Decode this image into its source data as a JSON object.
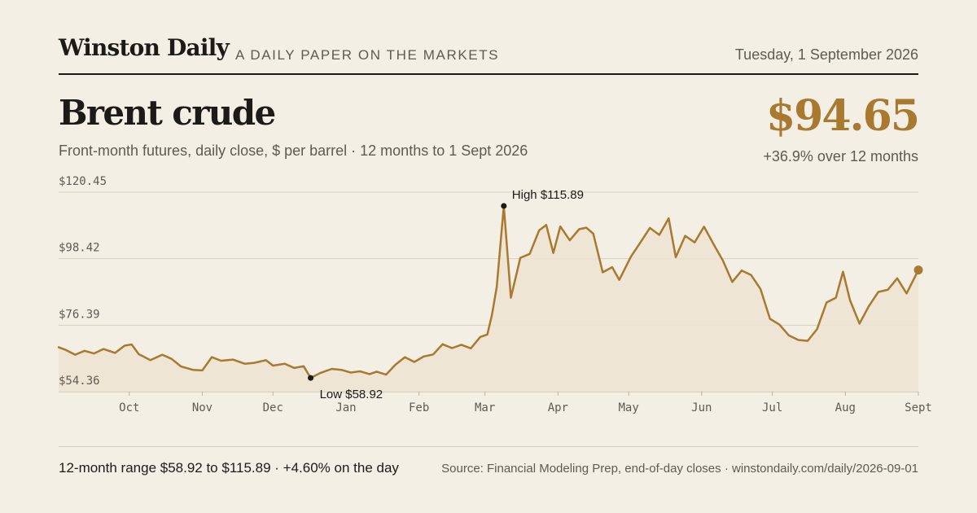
{
  "masthead": {
    "brand": "Winston Daily",
    "tagline": "A DAILY PAPER ON THE MARKETS",
    "date": "Tuesday, 1 September 2026"
  },
  "headline": {
    "title": "Brent crude",
    "subtitle": "Front-month futures, daily close, $ per barrel · 12 months to 1 Sept 2026",
    "price": "$94.65",
    "change": "+36.9% over 12 months"
  },
  "footer": {
    "summary": "12-month range $58.92 to $115.89 · +4.60% on the day",
    "source": "Source: Financial Modeling Prep, end-of-day closes · winstondaily.com/daily/2026-09-01"
  },
  "colors": {
    "line": "#a8792f",
    "area": "#ede3d2",
    "grid": "#d8cfbf",
    "text": "#1d1b18",
    "muted": "#5f5a52",
    "background": "#f4efe5"
  },
  "chart_data": {
    "type": "line",
    "series_name": "Brent crude front-month close",
    "ylim": [
      54.36,
      120.45
    ],
    "yticks": [
      "$54.36",
      "$76.39",
      "$98.42",
      "$120.45"
    ],
    "ytick_values": [
      54.36,
      76.39,
      98.42,
      120.45
    ],
    "x_range": [
      "2025-09-01",
      "2026-09-01"
    ],
    "xticks": [
      {
        "label": "Oct",
        "date": "2025-10-01"
      },
      {
        "label": "Nov",
        "date": "2025-11-01"
      },
      {
        "label": "Dec",
        "date": "2025-12-01"
      },
      {
        "label": "Jan",
        "date": "2026-01-01"
      },
      {
        "label": "Feb",
        "date": "2026-02-01"
      },
      {
        "label": "Mar",
        "date": "2026-03-01"
      },
      {
        "label": "Apr",
        "date": "2026-04-01"
      },
      {
        "label": "May",
        "date": "2026-05-01"
      },
      {
        "label": "Jun",
        "date": "2026-06-01"
      },
      {
        "label": "Jul",
        "date": "2026-07-01"
      },
      {
        "label": "Aug",
        "date": "2026-08-01"
      },
      {
        "label": "Sept",
        "date": "2026-09-01"
      }
    ],
    "grid": "horizontal",
    "annotations": {
      "high": {
        "label": "High $115.89",
        "date": "2026-03-09",
        "value": 115.89
      },
      "low": {
        "label": "Low $58.92",
        "date": "2025-12-17",
        "value": 58.92
      },
      "last": {
        "date": "2026-09-01",
        "value": 94.65
      }
    },
    "points": [
      [
        "2025-09-01",
        69.1
      ],
      [
        "2025-09-04",
        68.2
      ],
      [
        "2025-09-08",
        66.6
      ],
      [
        "2025-09-12",
        67.9
      ],
      [
        "2025-09-16",
        67.0
      ],
      [
        "2025-09-20",
        68.5
      ],
      [
        "2025-09-25",
        67.2
      ],
      [
        "2025-09-29",
        69.6
      ],
      [
        "2025-10-02",
        70.0
      ],
      [
        "2025-10-05",
        66.8
      ],
      [
        "2025-10-10",
        64.8
      ],
      [
        "2025-10-15",
        66.6
      ],
      [
        "2025-10-19",
        65.2
      ],
      [
        "2025-10-23",
        62.7
      ],
      [
        "2025-10-28",
        61.6
      ],
      [
        "2025-11-01",
        61.4
      ],
      [
        "2025-11-05",
        65.8
      ],
      [
        "2025-11-09",
        64.6
      ],
      [
        "2025-11-14",
        65.0
      ],
      [
        "2025-11-19",
        63.6
      ],
      [
        "2025-11-23",
        63.9
      ],
      [
        "2025-11-28",
        64.8
      ],
      [
        "2025-12-01",
        63.0
      ],
      [
        "2025-12-06",
        63.6
      ],
      [
        "2025-12-10",
        62.2
      ],
      [
        "2025-12-14",
        62.8
      ],
      [
        "2025-12-17",
        58.92
      ],
      [
        "2025-12-21",
        60.5
      ],
      [
        "2025-12-26",
        61.9
      ],
      [
        "2025-12-30",
        61.6
      ],
      [
        "2026-01-03",
        60.7
      ],
      [
        "2026-01-07",
        61.1
      ],
      [
        "2026-01-11",
        60.2
      ],
      [
        "2026-01-14",
        61.0
      ],
      [
        "2026-01-18",
        60.0
      ],
      [
        "2026-01-22",
        63.3
      ],
      [
        "2026-01-26",
        65.8
      ],
      [
        "2026-01-30",
        64.2
      ],
      [
        "2026-02-03",
        66.0
      ],
      [
        "2026-02-07",
        66.7
      ],
      [
        "2026-02-11",
        70.1
      ],
      [
        "2026-02-15",
        68.8
      ],
      [
        "2026-02-19",
        69.9
      ],
      [
        "2026-02-23",
        68.7
      ],
      [
        "2026-02-27",
        72.5
      ],
      [
        "2026-03-02",
        73.3
      ],
      [
        "2026-03-04",
        79.9
      ],
      [
        "2026-03-06",
        89.0
      ],
      [
        "2026-03-09",
        115.89
      ],
      [
        "2026-03-12",
        85.5
      ],
      [
        "2026-03-16",
        98.7
      ],
      [
        "2026-03-20",
        100.0
      ],
      [
        "2026-03-24",
        107.8
      ],
      [
        "2026-03-27",
        109.6
      ],
      [
        "2026-03-30",
        100.3
      ],
      [
        "2026-04-02",
        109.1
      ],
      [
        "2026-04-06",
        104.5
      ],
      [
        "2026-04-10",
        108.2
      ],
      [
        "2026-04-13",
        108.7
      ],
      [
        "2026-04-16",
        106.7
      ],
      [
        "2026-04-20",
        93.9
      ],
      [
        "2026-04-24",
        95.6
      ],
      [
        "2026-04-27",
        91.4
      ],
      [
        "2026-05-02",
        99.1
      ],
      [
        "2026-05-06",
        103.8
      ],
      [
        "2026-05-10",
        108.6
      ],
      [
        "2026-05-14",
        106.3
      ],
      [
        "2026-05-18",
        111.8
      ],
      [
        "2026-05-21",
        98.9
      ],
      [
        "2026-05-25",
        106.0
      ],
      [
        "2026-05-29",
        103.8
      ],
      [
        "2026-06-02",
        109.0
      ],
      [
        "2026-06-06",
        103.3
      ],
      [
        "2026-06-10",
        97.8
      ],
      [
        "2026-06-14",
        90.7
      ],
      [
        "2026-06-18",
        94.5
      ],
      [
        "2026-06-22",
        93.0
      ],
      [
        "2026-06-26",
        88.3
      ],
      [
        "2026-06-30",
        78.5
      ],
      [
        "2026-07-04",
        76.6
      ],
      [
        "2026-07-08",
        73.0
      ],
      [
        "2026-07-12",
        71.5
      ],
      [
        "2026-07-16",
        71.2
      ],
      [
        "2026-07-20",
        75.1
      ],
      [
        "2026-07-24",
        83.9
      ],
      [
        "2026-07-28",
        85.5
      ],
      [
        "2026-07-31",
        94.1
      ],
      [
        "2026-08-03",
        84.6
      ],
      [
        "2026-08-07",
        76.9
      ],
      [
        "2026-08-11",
        82.7
      ],
      [
        "2026-08-15",
        87.4
      ],
      [
        "2026-08-19",
        88.1
      ],
      [
        "2026-08-23",
        91.9
      ],
      [
        "2026-08-27",
        86.9
      ],
      [
        "2026-09-01",
        94.65
      ]
    ]
  }
}
